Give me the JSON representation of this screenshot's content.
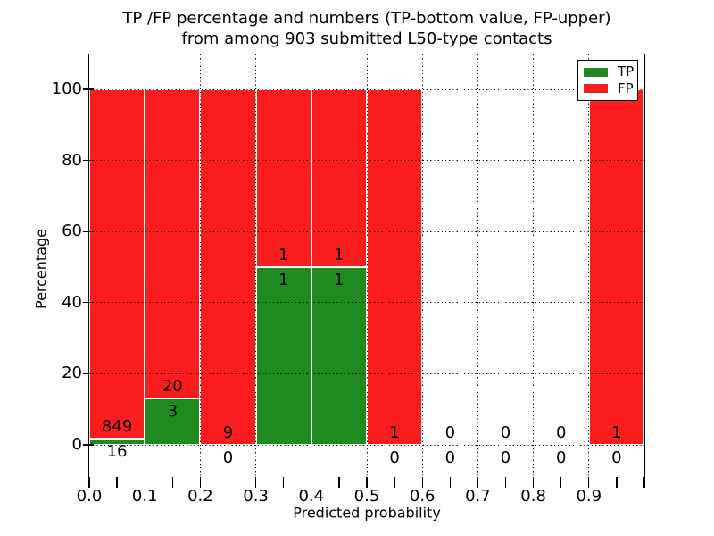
{
  "figure": {
    "title_line1": "TP /FP percentage and numbers (TP-bottom value, FP-upper)",
    "title_line2": "from among 903 submitted L50-type contacts"
  },
  "chart_data": {
    "type": "bar",
    "stacked": true,
    "title": "TP /FP percentage and numbers (TP-bottom value, FP-upper) from among 903 submitted L50-type contacts",
    "xlabel": "Predicted probability",
    "ylabel": "Percentage",
    "total_contacts": 903,
    "bin_width": 0.1,
    "xlim": [
      0.0,
      1.0
    ],
    "ylim": [
      -10.5,
      109.8
    ],
    "grid": true,
    "xtick_labels": [
      "0.0",
      "0.1",
      "0.2",
      "0.3",
      "0.4",
      "0.5",
      "0.6",
      "0.7",
      "0.8",
      "0.9"
    ],
    "xtick_values": [
      0.0,
      0.1,
      0.2,
      0.3,
      0.4,
      0.5,
      0.6,
      0.7,
      0.8,
      0.9
    ],
    "ytick_labels": [
      "0",
      "20",
      "40",
      "60",
      "80",
      "100"
    ],
    "ytick_values": [
      0,
      20,
      40,
      60,
      80,
      100
    ],
    "bins": [
      {
        "x0": 0.0,
        "x1": 0.1,
        "tp": 16,
        "fp": 849,
        "tp_pct": 1.85
      },
      {
        "x0": 0.1,
        "x1": 0.2,
        "tp": 3,
        "fp": 20,
        "tp_pct": 13.04
      },
      {
        "x0": 0.2,
        "x1": 0.3,
        "tp": 0,
        "fp": 9,
        "tp_pct": 0
      },
      {
        "x0": 0.3,
        "x1": 0.4,
        "tp": 1,
        "fp": 1,
        "tp_pct": 50
      },
      {
        "x0": 0.4,
        "x1": 0.5,
        "tp": 1,
        "fp": 1,
        "tp_pct": 50
      },
      {
        "x0": 0.5,
        "x1": 0.6,
        "tp": 0,
        "fp": 1,
        "tp_pct": 0
      },
      {
        "x0": 0.6,
        "x1": 0.7,
        "tp": 0,
        "fp": 0,
        "tp_pct": null
      },
      {
        "x0": 0.7,
        "x1": 0.8,
        "tp": 0,
        "fp": 0,
        "tp_pct": null
      },
      {
        "x0": 0.8,
        "x1": 0.9,
        "tp": 0,
        "fp": 0,
        "tp_pct": null
      },
      {
        "x0": 0.9,
        "x1": 1.0,
        "tp": 0,
        "fp": 1,
        "tp_pct": 0
      }
    ],
    "legend": {
      "position": "upper right",
      "entries": [
        {
          "label": "TP",
          "color": "#1f8a1f"
        },
        {
          "label": "FP",
          "color": "#fb1d1d"
        }
      ]
    }
  },
  "colors": {
    "tp": "#1f8a1f",
    "fp": "#fb1d1d",
    "grid": "#000000",
    "text": "#000000",
    "background": "#ffffff",
    "bar_edge": "#ffffff"
  }
}
